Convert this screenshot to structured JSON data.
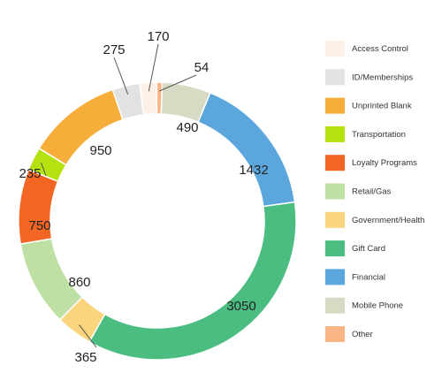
{
  "chart_data": {
    "type": "pie",
    "subtype": "donut",
    "series": [
      {
        "name": "Mobile Phone",
        "value": 490,
        "color": "#d6dcc4"
      },
      {
        "name": "Financial",
        "value": 1432,
        "color": "#5ba7dd"
      },
      {
        "name": "Gift Card",
        "value": 3050,
        "color": "#4bbd80"
      },
      {
        "name": "Government/Health",
        "value": 365,
        "color": "#fbd57e"
      },
      {
        "name": "Retail/Gas",
        "value": 860,
        "color": "#bee0a4"
      },
      {
        "name": "Loyalty Programs",
        "value": 750,
        "color": "#f26522"
      },
      {
        "name": "Transportation",
        "value": 235,
        "color": "#b5e10f"
      },
      {
        "name": "Unprinted Blank",
        "value": 950,
        "color": "#f7ad3a"
      },
      {
        "name": "ID/Memberships",
        "value": 275,
        "color": "#e0e2e4"
      },
      {
        "name": "Access Control",
        "value": 170,
        "color": "#fdf1e7"
      },
      {
        "name": "Other",
        "value": 54,
        "color": "#fbb484"
      }
    ],
    "legend": {
      "placement": "right",
      "order": [
        "Access Control",
        "ID/Memberships",
        "Unprinted Blank",
        "Transportation",
        "Loyalty Programs",
        "Retail/Gas",
        "Government/Health",
        "Gift Card",
        "Financial",
        "Mobile Phone",
        "Other"
      ]
    },
    "title": "",
    "leader_lines_color": "#555555"
  }
}
